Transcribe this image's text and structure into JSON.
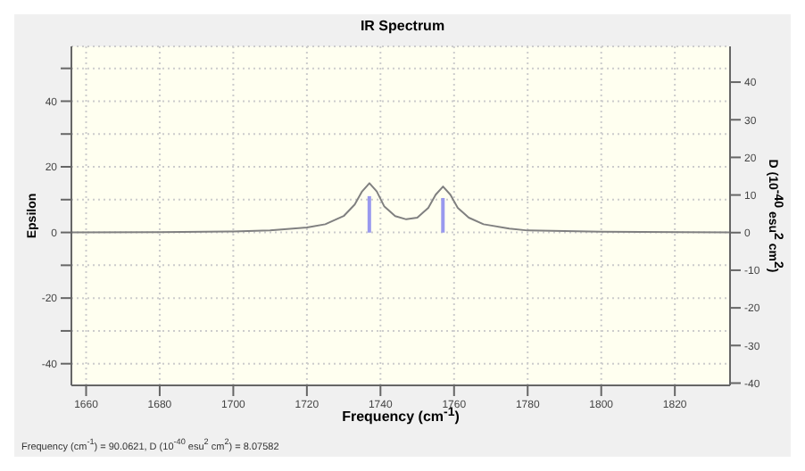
{
  "chart_data": {
    "type": "line",
    "title": "IR Spectrum",
    "xlabel": "Frequency (cm$^{-1}$)",
    "ylabel": "Epsilon",
    "y2label": "D (10$^{-40}$ esu$^{2}$ cm$^{2}$)",
    "series": [
      {
        "color": "#808080",
        "x": [
          1656,
          1680,
          1700,
          1710,
          1720,
          1725,
          1730,
          1733,
          1735,
          1737,
          1739,
          1741,
          1744,
          1747,
          1750,
          1753,
          1755,
          1757,
          1759,
          1761,
          1764,
          1768,
          1775,
          1780,
          1800,
          1835
        ],
        "values": [
          0,
          0.1,
          0.3,
          0.6,
          1.5,
          2.5,
          5,
          8.5,
          12.5,
          15,
          12.5,
          8,
          5,
          4,
          4.5,
          7.5,
          11.5,
          14,
          11.5,
          7.5,
          4.5,
          2.5,
          1.2,
          0.6,
          0.2,
          0
        ]
      },
      {
        "type": "bar",
        "axis": "y2",
        "color": "#9999ee",
        "x": [
          1737,
          1757
        ],
        "values": [
          9.7,
          9.2
        ]
      }
    ],
    "xlim": [
      1656,
      1835
    ],
    "xticks": [
      1660,
      1680,
      1700,
      1720,
      1740,
      1760,
      1780,
      1800,
      1820
    ],
    "ylim": [
      -46.6,
      56.7
    ],
    "yticks": [
      {
        "value": -40,
        "label": "-40"
      },
      {
        "value": -30,
        "label": null
      },
      {
        "value": -20,
        "label": "-20"
      },
      {
        "value": -10,
        "label": null
      },
      0,
      {
        "value": 10,
        "label": null
      },
      20,
      {
        "value": 30,
        "label": null
      },
      40,
      {
        "value": 50,
        "label": null
      }
    ],
    "y2lim": [
      -40.6,
      49.5
    ],
    "y2ticks": [
      -40,
      -30,
      -20,
      -10,
      0,
      10,
      20,
      30,
      40
    ],
    "grid": true,
    "marker": "none",
    "line_style": "solid",
    "annotations": [
      "Frequency (cm$^{-1}$) = 90.0621, D (10$^{-40}$ esu$^{2}$ cm$^{2}$) = 8.07582"
    ]
  }
}
